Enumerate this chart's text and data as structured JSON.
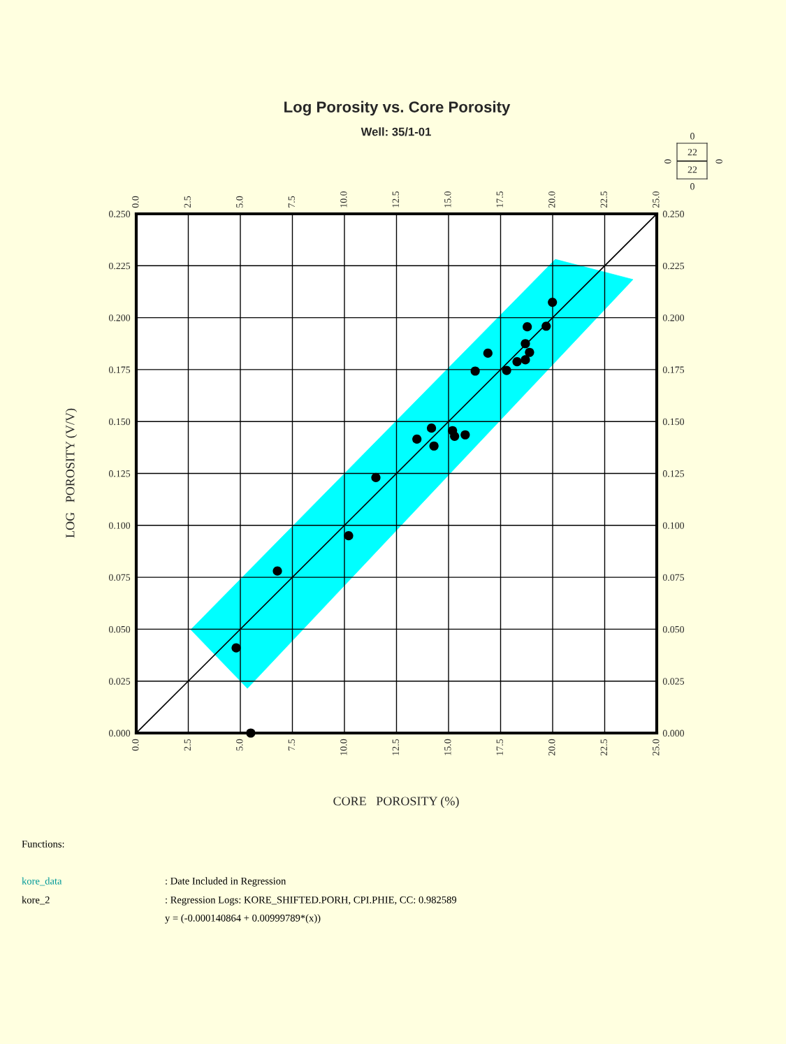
{
  "chart_data": {
    "type": "scatter",
    "title": "Log Porosity vs. Core Porosity",
    "subtitle": "Well: 35/1-01",
    "xlabel": "CORE   POROSITY (%)",
    "ylabel": "LOG   POROSITY (V/V)",
    "series": [
      {
        "type": "area",
        "color": "#00ffff",
        "x": [
          2.62,
          20.13,
          23.86,
          5.34
        ],
        "values": [
          0.0498,
          0.2281,
          0.2184,
          0.0215
        ]
      },
      {
        "type": "line",
        "color": "#000000",
        "x": [
          0,
          25
        ],
        "values": [
          0,
          0.25
        ]
      },
      {
        "color": "#000000",
        "marker": "circle",
        "x": [
          4.8,
          5.5,
          6.78,
          10.2,
          11.51,
          13.48,
          14.18,
          14.3,
          15.19,
          15.29,
          15.8,
          16.28,
          16.89,
          17.79,
          18.29,
          18.69,
          18.69,
          18.78,
          18.89,
          19.69,
          19.99
        ],
        "values": [
          0.041,
          0.0,
          0.078,
          0.095,
          0.123,
          0.1415,
          0.1468,
          0.1382,
          0.1456,
          0.1429,
          0.1436,
          0.1743,
          0.1829,
          0.1746,
          0.1788,
          0.1875,
          0.1797,
          0.1956,
          0.1833,
          0.1959,
          0.2074
        ]
      }
    ],
    "xlim": [
      0,
      25
    ],
    "ylim": [
      0,
      0.25
    ],
    "xticks": [
      {
        "value": 0,
        "label": "0.0"
      },
      {
        "value": 2.5,
        "label": "2.5"
      },
      {
        "value": 5,
        "label": "5.0"
      },
      {
        "value": 7.5,
        "label": "7.5"
      },
      {
        "value": 10,
        "label": "10.0"
      },
      {
        "value": 12.5,
        "label": "12.5"
      },
      {
        "value": 15,
        "label": "15.0"
      },
      {
        "value": 17.5,
        "label": "17.5"
      },
      {
        "value": 20,
        "label": "20.0"
      },
      {
        "value": 22.5,
        "label": "22.5"
      },
      {
        "value": 25,
        "label": "25.0"
      }
    ],
    "x2lim": [
      0,
      25
    ],
    "x2ticks": [
      {
        "value": 0,
        "label": "0.0"
      },
      {
        "value": 2.5,
        "label": "2.5"
      },
      {
        "value": 5,
        "label": "5.0"
      },
      {
        "value": 7.5,
        "label": "7.5"
      },
      {
        "value": 10,
        "label": "10.0"
      },
      {
        "value": 12.5,
        "label": "12.5"
      },
      {
        "value": 15,
        "label": "15.0"
      },
      {
        "value": 17.5,
        "label": "17.5"
      },
      {
        "value": 20,
        "label": "20.0"
      },
      {
        "value": 22.5,
        "label": "22.5"
      },
      {
        "value": 25,
        "label": "25.0"
      }
    ],
    "yticks": [
      {
        "value": 0,
        "label": "0.000"
      },
      {
        "value": 0.025,
        "label": "0.025"
      },
      {
        "value": 0.05,
        "label": "0.050"
      },
      {
        "value": 0.075,
        "label": "0.075"
      },
      {
        "value": 0.1,
        "label": "0.100"
      },
      {
        "value": 0.125,
        "label": "0.125"
      },
      {
        "value": 0.15,
        "label": "0.150"
      },
      {
        "value": 0.175,
        "label": "0.175"
      },
      {
        "value": 0.2,
        "label": "0.200"
      },
      {
        "value": 0.225,
        "label": "0.225"
      },
      {
        "value": 0.25,
        "label": "0.250"
      }
    ],
    "y2lim": [
      0,
      0.25
    ],
    "y2ticks": [
      {
        "value": 0,
        "label": "0.000"
      },
      {
        "value": 0.025,
        "label": "0.025"
      },
      {
        "value": 0.05,
        "label": "0.050"
      },
      {
        "value": 0.075,
        "label": "0.075"
      },
      {
        "value": 0.1,
        "label": "0.100"
      },
      {
        "value": 0.125,
        "label": "0.125"
      },
      {
        "value": 0.15,
        "label": "0.150"
      },
      {
        "value": 0.175,
        "label": "0.175"
      },
      {
        "value": 0.2,
        "label": "0.200"
      },
      {
        "value": 0.225,
        "label": "0.225"
      },
      {
        "value": 0.25,
        "label": "0.250"
      }
    ],
    "grid": true,
    "annotations": [
      "0",
      "22",
      "22",
      "0",
      "0",
      "0",
      "Functions:",
      "kore_data",
      ": Date Included in Regression",
      "kore_2",
      ": Regression Logs: KORE_SHIFTED.PORH, CPI.PHIE, CC: 0.982589",
      "y = (-0.000140864 + 0.00999789*(x))"
    ]
  }
}
